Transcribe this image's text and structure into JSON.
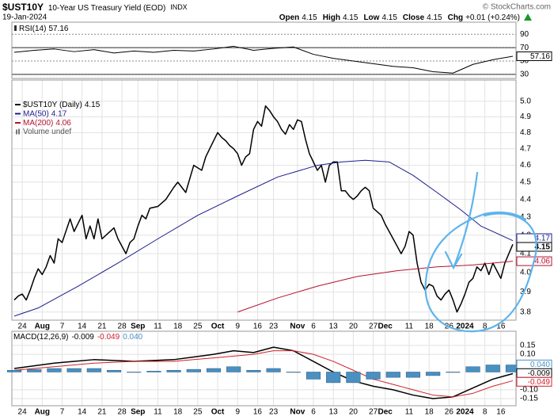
{
  "header": {
    "symbol": "$UST10Y",
    "name": "10-Year US Treasury Yield (EOD)",
    "exchange": "INDX",
    "date": "19-Jan-2024",
    "copyright": "© StockCharts.com",
    "quote": [
      {
        "label": "Open",
        "value": "4.15"
      },
      {
        "label": "High",
        "value": "4.15"
      },
      {
        "label": "Low",
        "value": "4.15"
      },
      {
        "label": "Close",
        "value": "4.15"
      },
      {
        "label": "Chg",
        "value": "+0.01 (+0.24%)"
      }
    ]
  },
  "chart_data": [
    {
      "type": "line",
      "xlim": [
        -0.6,
        125.8
      ],
      "ylim": [
        24,
        108
      ],
      "yticks": [
        90,
        70,
        50,
        30
      ],
      "levels": [
        70,
        30
      ],
      "grid": true,
      "series": [
        {
          "name": "RSI(14)",
          "color": "#000000",
          "x": [
            0,
            5,
            10,
            15,
            20,
            25,
            30,
            35,
            40,
            45,
            50,
            55,
            60,
            65,
            70,
            75,
            80,
            85,
            90,
            95,
            100,
            105,
            110,
            115,
            120,
            125
          ],
          "values": [
            63,
            66,
            68,
            64,
            67,
            62,
            65,
            63,
            66,
            65,
            68,
            72,
            66,
            69,
            71,
            60,
            54,
            50,
            46,
            42,
            40,
            34,
            32,
            45,
            52,
            57.16
          ]
        }
      ]
    },
    {
      "type": "line",
      "log_scale": true,
      "xlim": [
        -0.6,
        125.8
      ],
      "ylim": [
        3.76,
        5.14
      ],
      "grid": true,
      "yticks": [
        3.8,
        3.9,
        {
          "value": 4,
          "label": "4.0"
        },
        4.1,
        4.2,
        4.3,
        4.4,
        4.5,
        4.6,
        4.7,
        4.8,
        4.9,
        {
          "value": 5,
          "label": "5.0"
        }
      ],
      "xticks": [
        {
          "value": 2,
          "label": "24"
        },
        {
          "value": 7,
          "label": "Aug",
          "major": true
        },
        {
          "value": 12,
          "label": "7"
        },
        {
          "value": 17,
          "label": "14"
        },
        {
          "value": 22,
          "label": "21"
        },
        {
          "value": 27,
          "label": "28"
        },
        {
          "value": 31,
          "label": "Sep",
          "major": true
        },
        {
          "value": 36,
          "label": "11"
        },
        {
          "value": 41,
          "label": "18"
        },
        {
          "value": 46,
          "label": "25"
        },
        {
          "value": 51,
          "label": "Oct",
          "major": true
        },
        {
          "value": 56,
          "label": "9"
        },
        {
          "value": 61,
          "label": "16"
        },
        {
          "value": 65,
          "label": "23"
        },
        {
          "value": 71,
          "label": "Nov",
          "major": true
        },
        {
          "value": 75,
          "label": "6"
        },
        {
          "value": 80,
          "label": "13"
        },
        {
          "value": 85,
          "label": "20"
        },
        {
          "value": 90,
          "label": "27"
        },
        {
          "value": 93,
          "label": "Dec",
          "major": true
        },
        {
          "value": 99,
          "label": "11"
        },
        {
          "value": 104,
          "label": "18"
        },
        {
          "value": 109,
          "label": "26"
        },
        {
          "value": 113,
          "label": "2024",
          "major": true
        },
        {
          "value": 118,
          "label": "8"
        },
        {
          "value": 122,
          "label": "16"
        }
      ],
      "legend_extra": "Volume undef",
      "series": [
        {
          "name": "$UST10Y (Daily)",
          "color": "#000000",
          "width": 1.5,
          "x": [
            0,
            1,
            2,
            3,
            4,
            5,
            6,
            7,
            8,
            9,
            10,
            11,
            12,
            14,
            15,
            17,
            18,
            19,
            20,
            21,
            22,
            24,
            25,
            26,
            28,
            29,
            30,
            31,
            32,
            33,
            34,
            36,
            38,
            40,
            41,
            43,
            44,
            45,
            47,
            48,
            49,
            51,
            52,
            53,
            54,
            55,
            56,
            57,
            58,
            59,
            60,
            61,
            62,
            63,
            64,
            65,
            66,
            67,
            68,
            69,
            70,
            71,
            72,
            73,
            74,
            75,
            76,
            77,
            78,
            79,
            80,
            81,
            82,
            83,
            84,
            85,
            86,
            87,
            88,
            89,
            90,
            91,
            92,
            93,
            94,
            95,
            96,
            97,
            98,
            99,
            100,
            101,
            102,
            103,
            104,
            105,
            106,
            107,
            108,
            109,
            110,
            111,
            112,
            113,
            114,
            115,
            116,
            117,
            118,
            119,
            120,
            121,
            122,
            123,
            124,
            125
          ],
          "values": [
            3.86,
            3.88,
            3.89,
            3.86,
            3.91,
            3.97,
            4.02,
            3.99,
            4.03,
            4.09,
            4.05,
            4.18,
            4.16,
            4.29,
            4.22,
            4.31,
            4.18,
            4.25,
            4.18,
            4.29,
            4.18,
            4.22,
            4.24,
            4.18,
            4.1,
            4.16,
            4.18,
            4.25,
            4.31,
            4.29,
            4.35,
            4.36,
            4.4,
            4.47,
            4.5,
            4.44,
            4.52,
            4.6,
            4.57,
            4.65,
            4.7,
            4.8,
            4.77,
            4.75,
            4.72,
            4.7,
            4.67,
            4.6,
            4.65,
            4.67,
            4.82,
            4.87,
            4.84,
            4.97,
            4.94,
            4.9,
            4.87,
            4.82,
            4.79,
            4.85,
            4.82,
            4.88,
            4.87,
            4.76,
            4.67,
            4.62,
            4.57,
            4.6,
            4.5,
            4.6,
            4.62,
            4.62,
            4.45,
            4.45,
            4.42,
            4.4,
            4.42,
            4.45,
            4.47,
            4.45,
            4.35,
            4.33,
            4.31,
            4.26,
            4.22,
            4.18,
            4.14,
            4.1,
            4.14,
            4.22,
            4.2,
            4.05,
            3.95,
            3.91,
            3.94,
            3.93,
            3.88,
            3.86,
            3.89,
            3.91,
            3.86,
            3.8,
            3.84,
            3.89,
            3.95,
            3.97,
            4.03,
            4.01,
            4.05,
            3.99,
            4.05,
            4.01,
            3.97,
            4.05,
            4.1,
            4.15
          ]
        },
        {
          "name": "MA(50)",
          "color": "#1c1c8c",
          "width": 1,
          "x": [
            0,
            6,
            16,
            26,
            36,
            46,
            56,
            66,
            76,
            82,
            88,
            94,
            100,
            106,
            112,
            117,
            125
          ],
          "values": [
            3.78,
            3.82,
            3.93,
            4.05,
            4.18,
            4.31,
            4.42,
            4.53,
            4.6,
            4.62,
            4.63,
            4.62,
            4.54,
            4.44,
            4.34,
            4.25,
            4.17
          ]
        },
        {
          "name": "MA(200)",
          "color": "#b3122e",
          "width": 1,
          "x": [
            56,
            66,
            76,
            86,
            96,
            106,
            115,
            125
          ],
          "values": [
            3.8,
            3.87,
            3.93,
            3.98,
            4.01,
            4.03,
            4.04,
            4.06
          ]
        }
      ]
    },
    {
      "type": "line",
      "xlim": [
        -0.6,
        125.8
      ],
      "ylim": [
        -0.19,
        0.23
      ],
      "grid": true,
      "legend_title": "MACD(12,26,9)",
      "yticks": [
        0.15,
        {
          "value": 0.1,
          "label": "0.10"
        },
        {
          "value": -0.1,
          "label": "-0.10"
        },
        -0.15
      ],
      "xticks": [
        {
          "value": 2,
          "label": "24"
        },
        {
          "value": 7,
          "label": "Aug",
          "major": true
        },
        {
          "value": 12,
          "label": "7"
        },
        {
          "value": 17,
          "label": "14"
        },
        {
          "value": 22,
          "label": "21"
        },
        {
          "value": 27,
          "label": "28"
        },
        {
          "value": 31,
          "label": "Sep",
          "major": true
        },
        {
          "value": 36,
          "label": "11"
        },
        {
          "value": 41,
          "label": "18"
        },
        {
          "value": 46,
          "label": "25"
        },
        {
          "value": 51,
          "label": "Oct",
          "major": true
        },
        {
          "value": 56,
          "label": "9"
        },
        {
          "value": 61,
          "label": "16"
        },
        {
          "value": 65,
          "label": "23"
        },
        {
          "value": 71,
          "label": "Nov",
          "major": true
        },
        {
          "value": 75,
          "label": "6"
        },
        {
          "value": 80,
          "label": "13"
        },
        {
          "value": 85,
          "label": "20"
        },
        {
          "value": 90,
          "label": "27"
        },
        {
          "value": 93,
          "label": "Dec",
          "major": true
        },
        {
          "value": 99,
          "label": "11"
        },
        {
          "value": 104,
          "label": "18"
        },
        {
          "value": 109,
          "label": "26"
        },
        {
          "value": 113,
          "label": "2024",
          "major": true
        },
        {
          "value": 118,
          "label": "8"
        },
        {
          "value": 122,
          "label": "16"
        }
      ],
      "series": [
        {
          "color": "#000000",
          "width": 1.5,
          "x": [
            0,
            5,
            10,
            15,
            20,
            25,
            30,
            35,
            40,
            45,
            50,
            55,
            60,
            65,
            70,
            75,
            80,
            85,
            90,
            95,
            100,
            105,
            110,
            115,
            120,
            125
          ],
          "values": [
            0.02,
            0.035,
            0.05,
            0.06,
            0.07,
            0.065,
            0.06,
            0.065,
            0.07,
            0.085,
            0.1,
            0.12,
            0.11,
            0.14,
            0.12,
            0.06,
            0.0,
            -0.05,
            -0.08,
            -0.1,
            -0.13,
            -0.15,
            -0.14,
            -0.09,
            -0.04,
            -0.009
          ]
        },
        {
          "color": "#d0202a",
          "width": 1,
          "x": [
            0,
            5,
            10,
            15,
            20,
            25,
            30,
            35,
            40,
            45,
            50,
            55,
            60,
            65,
            70,
            75,
            80,
            85,
            90,
            95,
            100,
            105,
            110,
            115,
            120,
            125
          ],
          "values": [
            0.01,
            0.02,
            0.03,
            0.04,
            0.05,
            0.055,
            0.06,
            0.06,
            0.06,
            0.07,
            0.08,
            0.09,
            0.1,
            0.12,
            0.12,
            0.1,
            0.06,
            0.01,
            -0.04,
            -0.07,
            -0.1,
            -0.13,
            -0.14,
            -0.12,
            -0.08,
            -0.049
          ]
        },
        {
          "color": "#4a90c0",
          "style": "bar",
          "x": [
            0,
            5,
            10,
            15,
            20,
            25,
            30,
            35,
            40,
            45,
            50,
            55,
            60,
            65,
            70,
            75,
            80,
            85,
            90,
            95,
            100,
            105,
            110,
            115,
            120,
            125
          ],
          "values": [
            0.01,
            0.015,
            0.02,
            0.02,
            0.02,
            0.01,
            0.0,
            0.005,
            0.01,
            0.015,
            0.02,
            0.03,
            0.01,
            0.02,
            0.0,
            -0.04,
            -0.06,
            -0.06,
            -0.04,
            -0.03,
            -0.03,
            -0.02,
            0.0,
            0.03,
            0.04,
            0.04
          ],
          "value_labels": [
            null,
            null,
            null,
            null,
            null,
            null,
            null,
            null,
            null,
            null,
            null,
            null,
            null,
            null,
            null,
            null,
            null,
            null,
            null,
            null,
            null,
            null,
            null,
            null,
            null,
            "0.040"
          ]
        }
      ]
    }
  ]
}
